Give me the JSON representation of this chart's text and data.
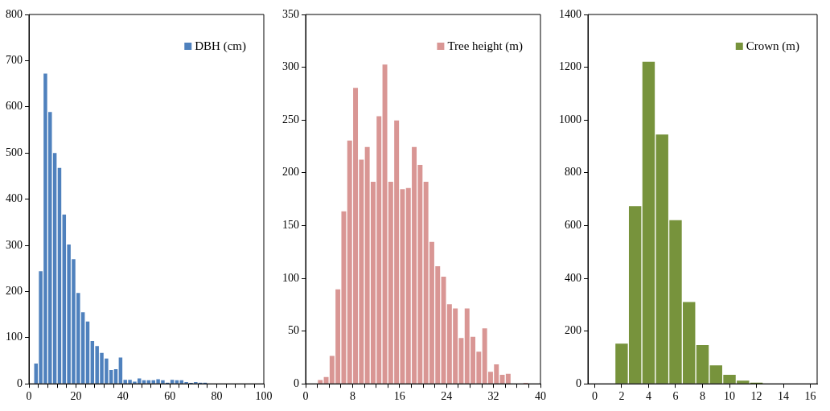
{
  "chart_data": [
    {
      "type": "histogram",
      "bins": [
        0,
        2,
        4,
        6,
        8,
        10,
        12,
        14,
        16,
        18,
        20,
        22,
        24,
        26,
        28,
        30,
        32,
        34,
        36,
        38,
        40,
        42,
        44,
        46,
        48,
        50,
        52,
        54,
        56,
        58,
        60,
        62,
        64,
        66,
        68,
        70,
        72,
        74,
        76
      ],
      "series": [
        {
          "name": "DBH (cm)",
          "color": "#4f81bd",
          "values": [
            0,
            45,
            245,
            673,
            590,
            501,
            469,
            368,
            303,
            271,
            198,
            156,
            136,
            94,
            83,
            68,
            56,
            31,
            33,
            58,
            10,
            10,
            6,
            13,
            9,
            9,
            9,
            11,
            9,
            3,
            10,
            9,
            9,
            5,
            2,
            5,
            3,
            3
          ]
        }
      ],
      "xlim": [
        0,
        100
      ],
      "xticks": [
        0,
        {
          "value": 4,
          "label": null
        },
        {
          "value": 8,
          "label": null
        },
        {
          "value": 12,
          "label": null
        },
        {
          "value": 16,
          "label": null
        },
        20,
        {
          "value": 24,
          "label": null
        },
        {
          "value": 28,
          "label": null
        },
        {
          "value": 32,
          "label": null
        },
        {
          "value": 36,
          "label": null
        },
        40,
        {
          "value": 44,
          "label": null
        },
        {
          "value": 48,
          "label": null
        },
        {
          "value": 52,
          "label": null
        },
        {
          "value": 56,
          "label": null
        },
        60,
        {
          "value": 64,
          "label": null
        },
        {
          "value": 68,
          "label": null
        },
        {
          "value": 72,
          "label": null
        },
        {
          "value": 76,
          "label": null
        },
        80,
        {
          "value": 84,
          "label": null
        },
        {
          "value": 88,
          "label": null
        },
        {
          "value": 92,
          "label": null
        },
        {
          "value": 96,
          "label": null
        },
        100
      ],
      "ylim": [
        0,
        800
      ],
      "yticks": [
        0,
        100,
        200,
        300,
        400,
        500,
        600,
        700,
        800
      ],
      "grid": false,
      "legend": "top right"
    },
    {
      "type": "histogram",
      "bins": [
        2,
        3,
        4,
        5,
        6,
        7,
        8,
        9,
        10,
        11,
        12,
        13,
        14,
        15,
        16,
        17,
        18,
        19,
        20,
        21,
        22,
        23,
        24,
        25,
        26,
        27,
        28,
        29,
        30,
        31,
        32,
        33,
        34,
        35,
        36,
        37,
        38
      ],
      "series": [
        {
          "name": "Tree height (m)",
          "color": "#d99694",
          "values": [
            4,
            7,
            27,
            90,
            164,
            231,
            281,
            213,
            225,
            192,
            254,
            303,
            192,
            250,
            185,
            186,
            225,
            208,
            192,
            135,
            112,
            102,
            76,
            72,
            44,
            72,
            45,
            31,
            53,
            12,
            19,
            9,
            10,
            0,
            0,
            1
          ]
        }
      ],
      "xlim": [
        0,
        40
      ],
      "xticks": [
        0,
        {
          "value": 2,
          "label": null
        },
        {
          "value": 4,
          "label": null
        },
        {
          "value": 6,
          "label": null
        },
        8,
        {
          "value": 10,
          "label": null
        },
        {
          "value": 12,
          "label": null
        },
        {
          "value": 14,
          "label": null
        },
        16,
        {
          "value": 18,
          "label": null
        },
        {
          "value": 20,
          "label": null
        },
        {
          "value": 22,
          "label": null
        },
        24,
        {
          "value": 26,
          "label": null
        },
        {
          "value": 28,
          "label": null
        },
        {
          "value": 30,
          "label": null
        },
        32,
        {
          "value": 34,
          "label": null
        },
        {
          "value": 36,
          "label": null
        },
        {
          "value": 38,
          "label": null
        },
        40
      ],
      "ylim": [
        0,
        350
      ],
      "yticks": [
        0,
        50,
        100,
        150,
        200,
        250,
        300,
        350
      ],
      "grid": false,
      "legend": "top right"
    },
    {
      "type": "histogram",
      "bins": [
        1.5,
        2.5,
        3.5,
        4.5,
        5.5,
        6.5,
        7.5,
        8.5,
        9.5,
        10.5,
        11.5,
        12.5
      ],
      "series": [
        {
          "name": "Crown (m)",
          "color": "#77933c",
          "values": [
            154,
            676,
            1223,
            947,
            622,
            312,
            149,
            72,
            36,
            14,
            6
          ]
        }
      ],
      "xlim": [
        -0.5,
        16.5
      ],
      "xticks": [
        0,
        2,
        4,
        6,
        8,
        10,
        12,
        14,
        16
      ],
      "ylim": [
        0,
        1400
      ],
      "yticks": [
        0,
        200,
        400,
        600,
        800,
        1000,
        1200,
        1400
      ],
      "grid": false,
      "legend": "top right"
    }
  ]
}
